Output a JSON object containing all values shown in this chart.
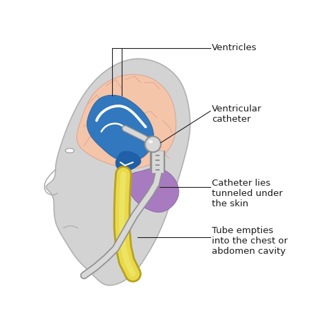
{
  "background_color": "#ffffff",
  "head_silhouette_color": "#d3d3d3",
  "brain_color": "#f5c5aa",
  "ventricle_color": "#3278be",
  "cerebellum_color": "#a87bc0",
  "catheter_body_color": "#d8d8d8",
  "catheter_edge_color": "#aaaaaa",
  "tube_yellow_color": "#e8d94a",
  "tube_yellow_dark": "#c8b830",
  "annotation_color": "#1a1a1a",
  "labels": {
    "ventricles": "Ventricles",
    "ventricular_catheter": "Ventricular\ncatheter",
    "catheter_skin": "Catheter lies\ntunneled under\nthe skin",
    "tube_empties": "Tube empties\ninto the chest or\nabdomen cavity"
  },
  "fig_width": 4.74,
  "fig_height": 4.61,
  "dpi": 100
}
